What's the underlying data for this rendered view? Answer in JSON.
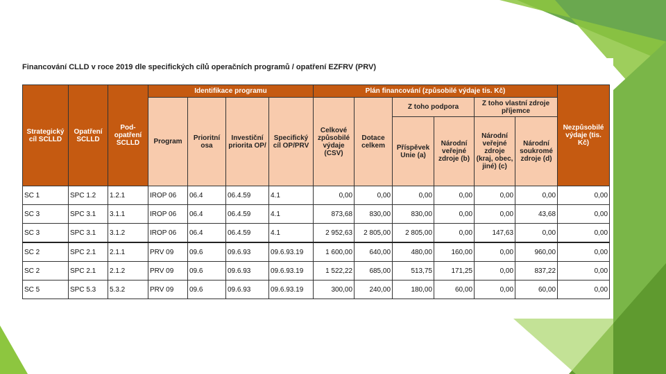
{
  "header": {
    "title": "Financování CLLD v roce 2019 dle specifických cílů operačních programů / opatření EZFRV (PRV)"
  },
  "table": {
    "head": {
      "strategic_goal": "Strategický cíl SCLLD",
      "measure": "Opatření SCLLD",
      "sub_measure": "Pod-opatření SCLLD",
      "program_identification": "Identifikace programu",
      "financing_plan": "Plán financování (způsobilé výdaje tis. Kč)",
      "support_group": "Z toho podpora",
      "own_sources_group": "Z toho vlastní zdroje příjemce",
      "program": "Program",
      "priority_axis": "Prioritní osa",
      "investment_priority": "Investiční priorita OP/",
      "specific_goal": "Specifický cíl OP/PRV",
      "total_eligible": "Celkové způsobilé výdaje (CSV)",
      "grant_total": "Dotace celkem",
      "eu_contribution": "Příspěvek Unie (a)",
      "national_public": "Národní veřejné zdroje (b)",
      "national_public_other": "Národní veřejné zdroje (kraj, obec, jiné) (c)",
      "national_private": "Národní soukromé zdroje (d)",
      "ineligible": "Nezpůsobilé výdaje (tis. Kč)"
    },
    "rows": [
      [
        "SC 1",
        "SPC 1.2",
        "1.2.1",
        "IROP 06",
        "06.4",
        "06.4.59",
        "4.1",
        "0,00",
        "0,00",
        "0,00",
        "0,00",
        "0,00",
        "0,00",
        "0,00"
      ],
      [
        "SC 3",
        "SPC 3.1",
        "3.1.1",
        "IROP 06",
        "06.4",
        "06.4.59",
        "4.1",
        "873,68",
        "830,00",
        "830,00",
        "0,00",
        "0,00",
        "43,68",
        "0,00"
      ],
      [
        "SC 3",
        "SPC 3.1",
        "3.1.2",
        "IROP 06",
        "06.4",
        "06.4.59",
        "4.1",
        "2 952,63",
        "2 805,00",
        "2 805,00",
        "0,00",
        "147,63",
        "0,00",
        "0,00"
      ],
      [
        "SC 2",
        "SPC 2.1",
        "2.1.1",
        "PRV 09",
        "09.6",
        "09.6.93",
        "09.6.93.19",
        "1 600,00",
        "640,00",
        "480,00",
        "160,00",
        "0,00",
        "960,00",
        "0,00"
      ],
      [
        "SC 2",
        "SPC 2.1",
        "2.1.2",
        "PRV 09",
        "09.6",
        "09.6.93",
        "09.6.93.19",
        "1 522,22",
        "685,00",
        "513,75",
        "171,25",
        "0,00",
        "837,22",
        "0,00"
      ],
      [
        "SC 5",
        "SPC 5.3",
        "5.3.2",
        "PRV 09",
        "09.6",
        "09.6.93",
        "09.6.93.19",
        "300,00",
        "240,00",
        "180,00",
        "60,00",
        "0,00",
        "60,00",
        "0,00"
      ]
    ]
  }
}
